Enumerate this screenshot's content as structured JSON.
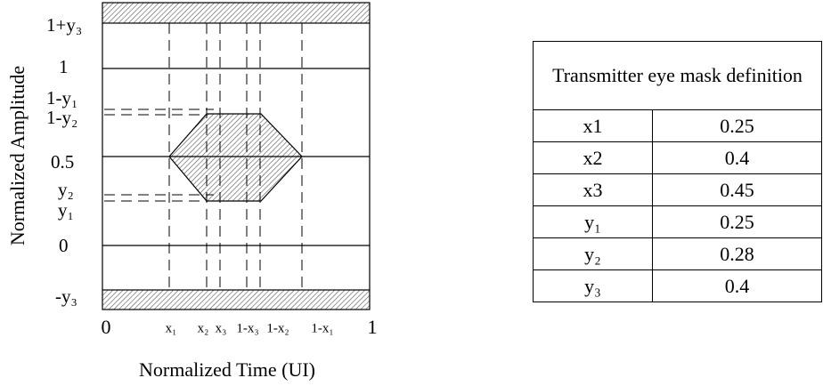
{
  "diagram": {
    "y_axis_label": "Normalized Amplitude",
    "x_axis_label": "Normalized Time (UI)",
    "y_labels": [
      "1+y₃",
      "1",
      "1-y₁",
      "1-y₂",
      "0.5",
      "y₂",
      "y₁",
      "0",
      "-y₃"
    ],
    "x_labels": [
      "0",
      "x₁",
      "x₂",
      "x₃",
      "1-x₃",
      "1-x₂",
      "1-x₁",
      "1"
    ]
  },
  "table": {
    "title": "Transmitter eye mask definition",
    "rows": [
      [
        "x1",
        0.25
      ],
      [
        "x2",
        0.4
      ],
      [
        "x3",
        0.45
      ],
      [
        "y₁",
        0.25
      ],
      [
        "y₂",
        0.28
      ],
      [
        "y₃",
        0.4
      ]
    ]
  }
}
